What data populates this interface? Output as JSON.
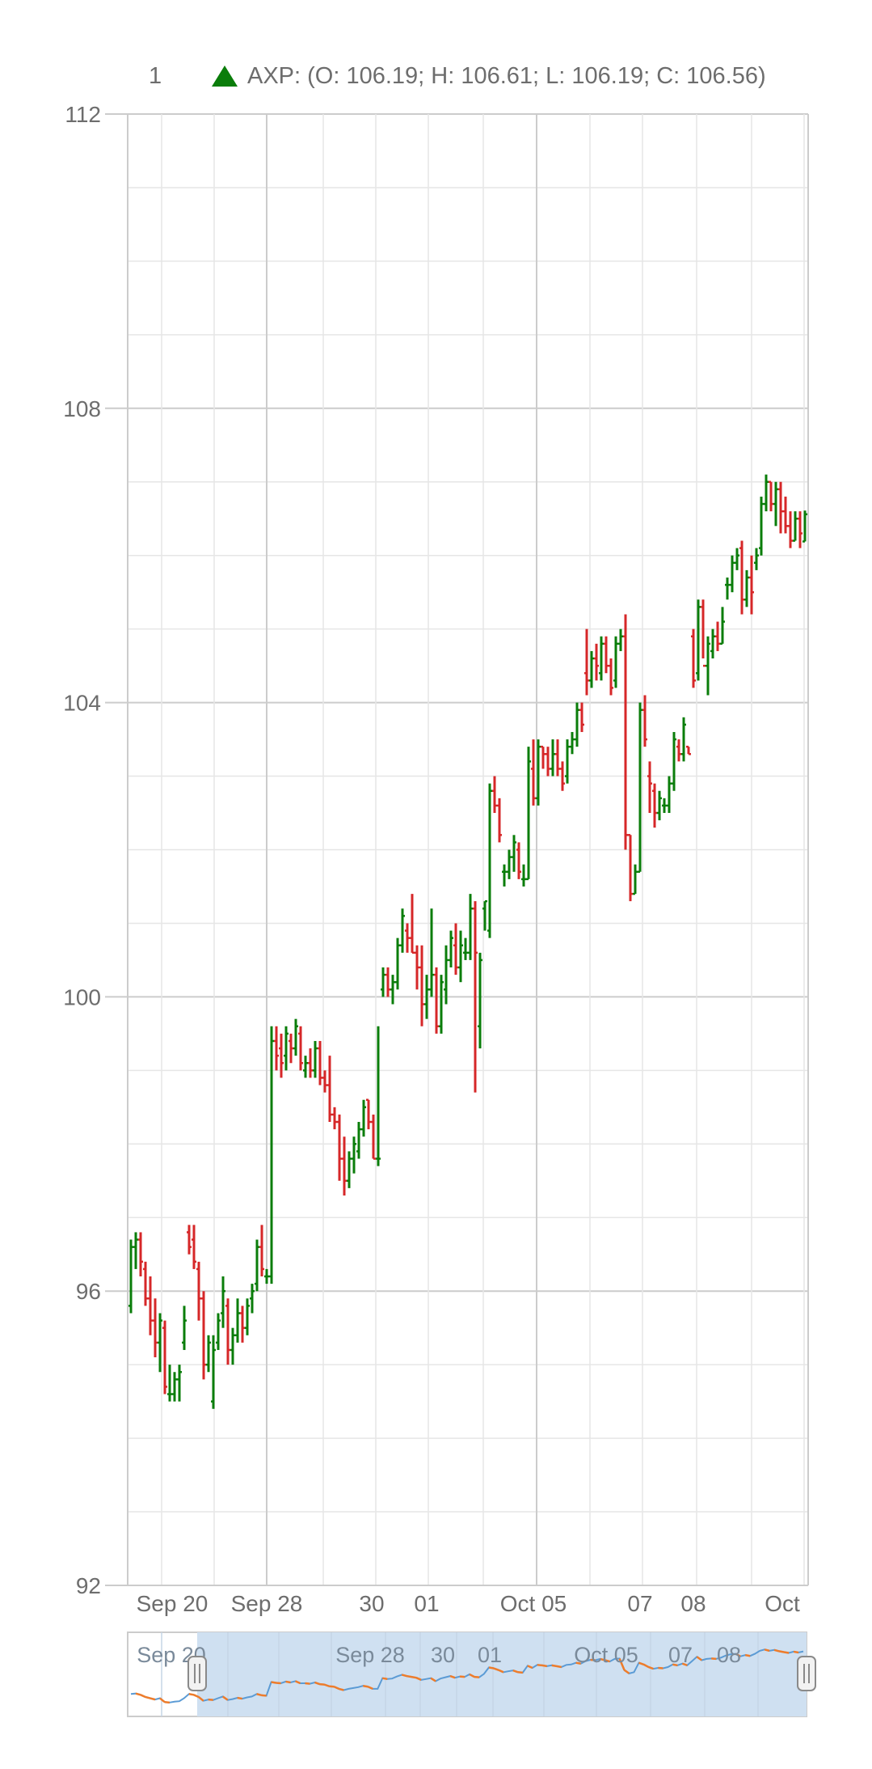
{
  "header": {
    "counter": "1",
    "ohlc_text": "AXP: (O: 106.19; H: 106.61; L: 106.19; C: 106.56)"
  },
  "colors": {
    "up": "#0a7d0a",
    "down": "#d62728",
    "grid": "#e6e6e6",
    "grid_major": "#cccccc",
    "axis_text": "#6d6d6d",
    "navigator_fill": "#cfe0f1",
    "navigator_line": "#5b9bd5",
    "navigator_line_down": "#ef7c2a"
  },
  "chart_data": {
    "type": "ohlc",
    "symbol": "AXP",
    "ylim": [
      92,
      112
    ],
    "y_ticks": [
      "112",
      "108",
      "104",
      "100",
      "96",
      "92"
    ],
    "x_ticks": [
      "Sep 20",
      "Sep 28",
      "30",
      "01",
      "Oct 05",
      "07",
      "08",
      "Oct"
    ],
    "navigator_ticks": [
      "Sep 20",
      "Sep 28",
      "30",
      "01",
      "Oct 05",
      "07",
      "08"
    ],
    "grid": true,
    "last_bar": {
      "open": 106.19,
      "high": 106.61,
      "low": 106.19,
      "close": 106.56
    },
    "bars": [
      [
        95.8,
        96.7,
        95.7,
        96.6
      ],
      [
        96.6,
        96.8,
        96.3,
        96.7
      ],
      [
        96.7,
        96.8,
        96.2,
        96.4
      ],
      [
        96.3,
        96.4,
        95.8,
        95.9
      ],
      [
        95.9,
        96.2,
        95.4,
        95.6
      ],
      [
        95.6,
        95.9,
        95.1,
        95.3
      ],
      [
        95.3,
        95.7,
        94.9,
        95.6
      ],
      [
        95.5,
        95.6,
        94.6,
        94.7
      ],
      [
        94.6,
        95.0,
        94.5,
        94.6
      ],
      [
        94.6,
        94.9,
        94.5,
        94.8
      ],
      [
        94.8,
        95.0,
        94.5,
        94.9
      ],
      [
        95.3,
        95.8,
        95.2,
        95.6
      ],
      [
        96.8,
        96.9,
        96.5,
        96.6
      ],
      [
        96.7,
        96.9,
        96.3,
        96.4
      ],
      [
        96.3,
        96.4,
        95.6,
        95.9
      ],
      [
        95.9,
        96.0,
        94.8,
        95.0
      ],
      [
        95.0,
        95.4,
        94.9,
        95.3
      ],
      [
        94.5,
        95.4,
        94.4,
        95.2
      ],
      [
        95.3,
        95.7,
        95.2,
        95.6
      ],
      [
        95.7,
        96.2,
        95.5,
        96.0
      ],
      [
        95.8,
        95.9,
        95.0,
        95.2
      ],
      [
        95.2,
        95.5,
        95.0,
        95.4
      ],
      [
        95.4,
        95.9,
        95.3,
        95.7
      ],
      [
        95.7,
        95.8,
        95.3,
        95.5
      ],
      [
        95.5,
        95.9,
        95.4,
        95.8
      ],
      [
        95.9,
        96.1,
        95.7,
        96.0
      ],
      [
        96.1,
        96.7,
        96.0,
        96.6
      ],
      [
        96.6,
        96.9,
        96.2,
        96.3
      ],
      [
        96.2,
        96.3,
        96.1,
        96.2
      ],
      [
        96.2,
        99.6,
        96.1,
        99.4
      ],
      [
        99.4,
        99.6,
        99.0,
        99.2
      ],
      [
        99.3,
        99.5,
        98.9,
        99.1
      ],
      [
        99.2,
        99.6,
        99.0,
        99.5
      ],
      [
        99.4,
        99.5,
        99.1,
        99.3
      ],
      [
        99.3,
        99.7,
        99.2,
        99.6
      ],
      [
        99.5,
        99.6,
        99.0,
        99.1
      ],
      [
        99.0,
        99.2,
        98.9,
        99.1
      ],
      [
        99.1,
        99.3,
        98.9,
        99.0
      ],
      [
        99.0,
        99.4,
        98.9,
        99.3
      ],
      [
        99.3,
        99.4,
        98.8,
        98.9
      ],
      [
        98.9,
        99.0,
        98.7,
        98.8
      ],
      [
        98.8,
        99.2,
        98.3,
        98.4
      ],
      [
        98.4,
        98.5,
        98.2,
        98.3
      ],
      [
        98.3,
        98.4,
        97.5,
        97.8
      ],
      [
        97.8,
        98.1,
        97.3,
        97.5
      ],
      [
        97.5,
        97.9,
        97.4,
        97.8
      ],
      [
        97.8,
        98.1,
        97.6,
        98.0
      ],
      [
        97.9,
        98.3,
        97.8,
        98.2
      ],
      [
        98.2,
        98.6,
        98.1,
        98.5
      ],
      [
        98.6,
        98.6,
        98.2,
        98.3
      ],
      [
        98.3,
        98.4,
        97.8,
        97.8
      ],
      [
        97.8,
        99.6,
        97.7,
        97.8
      ],
      [
        100.1,
        100.4,
        100.0,
        100.3
      ],
      [
        100.3,
        100.4,
        100.0,
        100.1
      ],
      [
        100.1,
        100.3,
        99.9,
        100.2
      ],
      [
        100.2,
        100.8,
        100.1,
        100.7
      ],
      [
        100.7,
        101.2,
        100.6,
        101.1
      ],
      [
        100.9,
        101.0,
        100.6,
        100.8
      ],
      [
        100.8,
        101.4,
        100.6,
        100.6
      ],
      [
        100.6,
        100.7,
        100.1,
        100.4
      ],
      [
        100.4,
        100.7,
        99.6,
        99.9
      ],
      [
        99.9,
        100.3,
        99.7,
        100.1
      ],
      [
        100.1,
        101.2,
        100.0,
        100.3
      ],
      [
        100.3,
        100.4,
        99.5,
        99.6
      ],
      [
        99.6,
        100.3,
        99.5,
        100.2
      ],
      [
        100.1,
        100.7,
        99.9,
        100.5
      ],
      [
        100.5,
        100.9,
        100.4,
        100.8
      ],
      [
        100.7,
        101.0,
        100.3,
        100.4
      ],
      [
        100.4,
        100.9,
        100.2,
        100.7
      ],
      [
        100.6,
        100.8,
        100.5,
        100.6
      ],
      [
        100.6,
        101.4,
        100.5,
        101.2
      ],
      [
        101.2,
        101.3,
        98.7,
        100.6
      ],
      [
        99.6,
        100.6,
        99.3,
        100.5
      ],
      [
        101.2,
        101.3,
        100.9,
        101.3
      ],
      [
        100.9,
        102.9,
        100.8,
        102.8
      ],
      [
        102.8,
        103.0,
        102.5,
        102.6
      ],
      [
        102.6,
        102.7,
        102.1,
        102.2
      ],
      [
        101.7,
        101.8,
        101.5,
        101.7
      ],
      [
        101.7,
        102.0,
        101.6,
        101.9
      ],
      [
        101.9,
        102.2,
        101.7,
        102.1
      ],
      [
        102.0,
        102.1,
        101.6,
        101.7
      ],
      [
        101.6,
        101.8,
        101.5,
        101.6
      ],
      [
        101.6,
        103.4,
        101.6,
        103.2
      ],
      [
        103.1,
        103.5,
        102.6,
        102.7
      ],
      [
        102.7,
        103.5,
        102.6,
        103.4
      ],
      [
        103.4,
        103.4,
        103.1,
        103.3
      ],
      [
        103.3,
        103.4,
        103.0,
        103.1
      ],
      [
        103.1,
        103.5,
        103.0,
        103.3
      ],
      [
        103.3,
        103.5,
        103.0,
        103.1
      ],
      [
        103.1,
        103.2,
        102.8,
        102.9
      ],
      [
        103.0,
        103.5,
        102.9,
        103.4
      ],
      [
        103.4,
        103.6,
        103.3,
        103.5
      ],
      [
        103.5,
        104.0,
        103.4,
        103.9
      ],
      [
        103.9,
        104.0,
        103.6,
        103.7
      ],
      [
        104.4,
        105.0,
        104.1,
        104.3
      ],
      [
        104.3,
        104.7,
        104.2,
        104.6
      ],
      [
        104.6,
        104.8,
        104.3,
        104.5
      ],
      [
        104.4,
        104.9,
        104.3,
        104.8
      ],
      [
        104.8,
        104.9,
        104.4,
        104.5
      ],
      [
        104.5,
        104.6,
        104.1,
        104.2
      ],
      [
        104.3,
        104.9,
        104.2,
        104.8
      ],
      [
        104.8,
        105.0,
        104.7,
        104.9
      ],
      [
        104.9,
        105.2,
        102.0,
        102.2
      ],
      [
        102.2,
        102.2,
        101.3,
        101.4
      ],
      [
        101.4,
        101.8,
        101.4,
        101.7
      ],
      [
        101.7,
        104.0,
        101.7,
        103.9
      ],
      [
        103.9,
        104.1,
        103.4,
        103.5
      ],
      [
        103.0,
        103.2,
        102.5,
        102.9
      ],
      [
        102.8,
        102.9,
        102.3,
        102.5
      ],
      [
        102.5,
        102.8,
        102.4,
        102.7
      ],
      [
        102.6,
        102.7,
        102.5,
        102.6
      ],
      [
        102.6,
        103.0,
        102.5,
        102.9
      ],
      [
        102.9,
        103.6,
        102.8,
        103.5
      ],
      [
        103.4,
        103.5,
        103.2,
        103.3
      ],
      [
        103.3,
        103.8,
        103.2,
        103.7
      ],
      [
        103.4,
        103.4,
        103.3,
        103.3
      ],
      [
        104.9,
        105.0,
        104.2,
        104.3
      ],
      [
        104.4,
        105.4,
        104.3,
        105.3
      ],
      [
        105.3,
        105.4,
        104.6,
        104.5
      ],
      [
        104.5,
        104.9,
        104.1,
        104.8
      ],
      [
        104.7,
        105.0,
        104.6,
        104.9
      ],
      [
        104.9,
        105.1,
        104.7,
        104.8
      ],
      [
        104.8,
        105.3,
        104.8,
        105.1
      ],
      [
        105.6,
        105.7,
        105.4,
        105.6
      ],
      [
        105.6,
        106.0,
        105.5,
        105.9
      ],
      [
        105.9,
        106.1,
        105.8,
        106.0
      ],
      [
        106.1,
        106.2,
        105.2,
        105.4
      ],
      [
        105.4,
        105.8,
        105.3,
        105.7
      ],
      [
        105.7,
        106.0,
        105.2,
        105.5
      ],
      [
        105.9,
        106.1,
        105.8,
        106.0
      ],
      [
        106.1,
        106.8,
        106.0,
        106.7
      ],
      [
        106.7,
        107.1,
        106.6,
        107.0
      ],
      [
        107.0,
        107.0,
        106.6,
        106.7
      ],
      [
        106.7,
        107.0,
        106.4,
        106.9
      ],
      [
        106.9,
        107.0,
        106.3,
        106.6
      ],
      [
        106.6,
        106.8,
        106.3,
        106.4
      ],
      [
        106.4,
        106.6,
        106.1,
        106.2
      ],
      [
        106.2,
        106.6,
        106.2,
        106.5
      ],
      [
        106.5,
        106.6,
        106.1,
        106.3
      ],
      [
        106.19,
        106.61,
        106.19,
        106.56
      ]
    ]
  }
}
